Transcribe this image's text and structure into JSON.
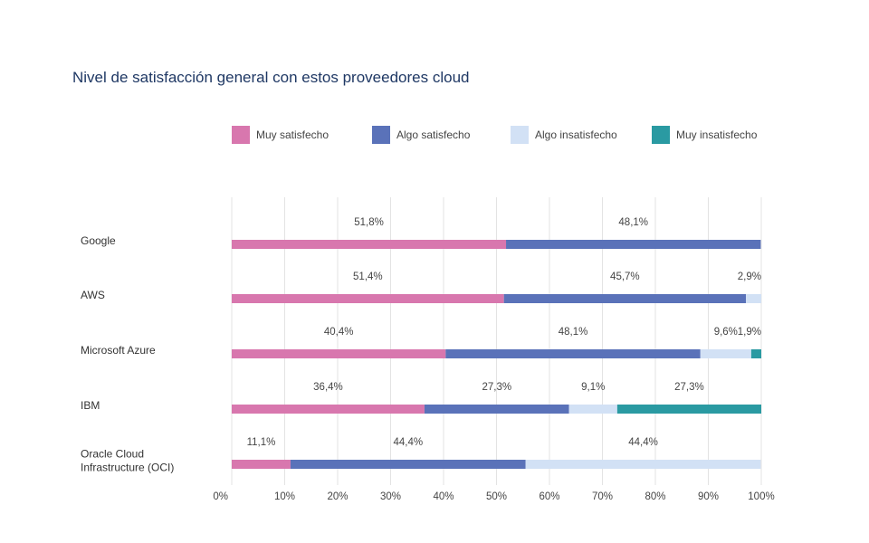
{
  "chart_data": {
    "type": "bar",
    "orientation": "horizontal",
    "stacked": true,
    "title": "Nivel de satisfacción general con estos proveedores cloud",
    "categories": [
      "Google",
      "AWS",
      "Microsoft Azure",
      "IBM",
      "Oracle Cloud Infrastructure (OCI)"
    ],
    "category_lines": [
      [
        "Google"
      ],
      [
        "AWS"
      ],
      [
        "Microsoft Azure"
      ],
      [
        "IBM"
      ],
      [
        "Oracle Cloud",
        "Infrastructure (OCI)"
      ]
    ],
    "series": [
      {
        "name": "Muy satisfecho",
        "color": "#d877ae",
        "values": [
          51.8,
          51.4,
          40.4,
          36.4,
          11.1
        ],
        "labels": [
          "51,8%",
          "51,4%",
          "40,4%",
          "36,4%",
          "11,1%"
        ]
      },
      {
        "name": "Algo satisfecho",
        "color": "#5a72b9",
        "values": [
          48.1,
          45.7,
          48.1,
          27.3,
          44.4
        ],
        "labels": [
          "48,1%",
          "45,7%",
          "48,1%",
          "27,3%",
          "44,4%"
        ]
      },
      {
        "name": "Algo insatisfecho",
        "color": "#d2e1f5",
        "values": [
          0,
          2.9,
          9.6,
          9.1,
          44.4
        ],
        "labels": [
          "",
          "2,9%",
          "9,6%",
          "9,1%",
          "44,4%"
        ]
      },
      {
        "name": "Muy insatisfecho",
        "color": "#2a9aa2",
        "values": [
          0,
          0,
          1.9,
          27.3,
          0
        ],
        "labels": [
          "",
          "",
          "1,9%",
          "27,3%",
          ""
        ]
      }
    ],
    "xlim": [
      0,
      100
    ],
    "xticks": [
      "0%",
      "10%",
      "20%",
      "30%",
      "40%",
      "50%",
      "60%",
      "70%",
      "80%",
      "90%",
      "100%"
    ],
    "legend_position": "top",
    "grid": true
  }
}
